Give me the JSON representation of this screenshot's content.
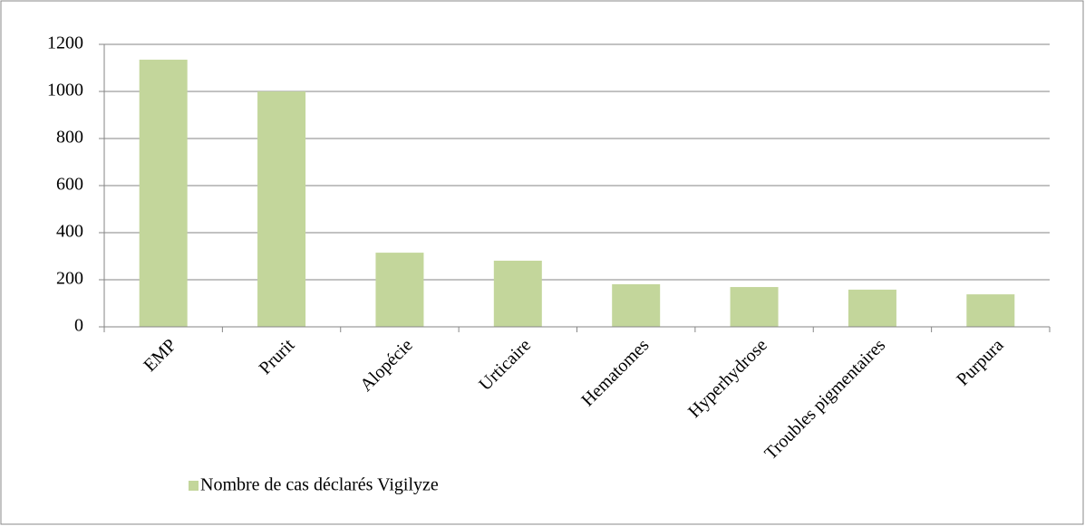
{
  "chart_data": {
    "type": "bar",
    "categories": [
      "EMP",
      "Prurit",
      "Alopécie",
      "Urticaire",
      "Hematomes",
      "Hyperhydrose",
      "Troubles pigmentaires",
      "Purpura"
    ],
    "series": [
      {
        "name": "Nombre de cas déclarés Vigilyze",
        "color": "#c3d69b",
        "values": [
          1135,
          1000,
          315,
          281,
          181,
          169,
          158,
          138
        ]
      }
    ],
    "ylim": [
      0,
      1200
    ],
    "yticks": [
      0,
      200,
      400,
      600,
      800,
      1000,
      1200
    ],
    "grid": true,
    "legend": "bottom-left"
  }
}
